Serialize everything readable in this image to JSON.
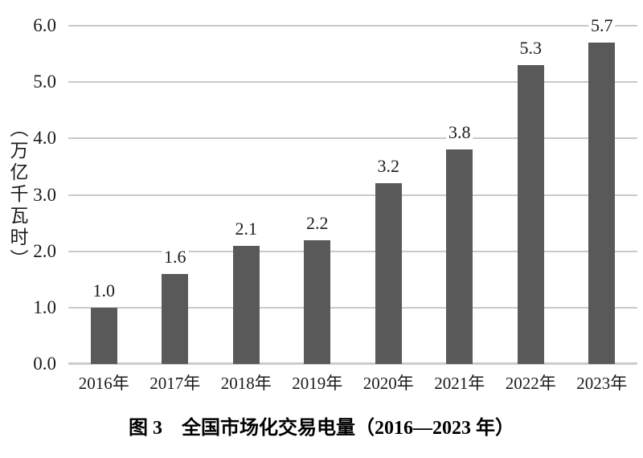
{
  "chart_data": {
    "type": "bar",
    "title": "图 3　全国市场化交易电量（2016—2023 年）",
    "ylabel": "（万亿千瓦时）",
    "xlabel": "",
    "categories": [
      "2016年",
      "2017年",
      "2018年",
      "2019年",
      "2020年",
      "2021年",
      "2022年",
      "2023年"
    ],
    "values": [
      1.0,
      1.6,
      2.1,
      2.2,
      3.2,
      3.8,
      5.3,
      5.7
    ],
    "value_labels": [
      "1.0",
      "1.6",
      "2.1",
      "2.2",
      "3.2",
      "3.8",
      "5.3",
      "5.7"
    ],
    "ylim": [
      0,
      6
    ],
    "ytick_step": 1,
    "ytick_labels": [
      "0.0",
      "1.0",
      "2.0",
      "3.0",
      "4.0",
      "5.0",
      "6.0"
    ],
    "grid": true,
    "legend": "none",
    "bar_color": "#595959",
    "gridline_color": "#c9c9c9",
    "text_color": "#1a1a1a"
  }
}
